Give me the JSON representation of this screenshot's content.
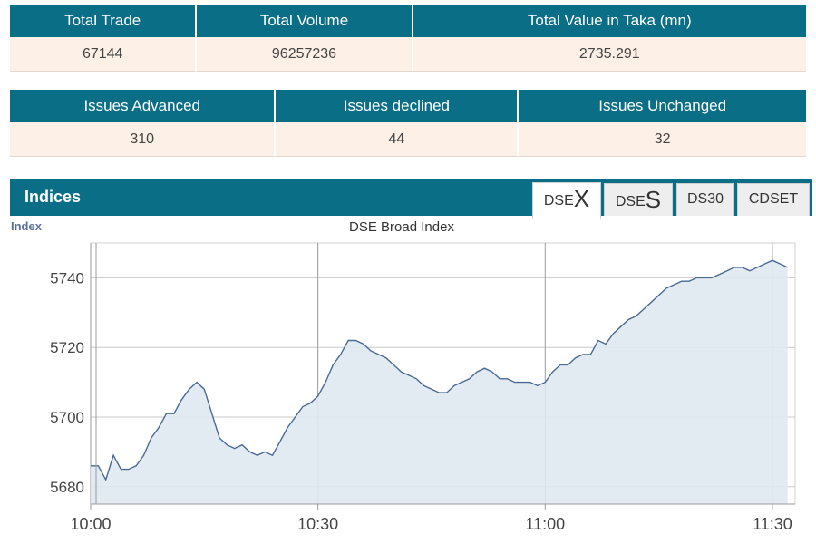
{
  "market_summary": {
    "headers": [
      "Total Trade",
      "Total Volume",
      "Total Value in Taka (mn)"
    ],
    "values": [
      "67144",
      "96257236",
      "2735.291"
    ]
  },
  "issues_summary": {
    "headers": [
      "Issues Advanced",
      "Issues declined",
      "Issues Unchanged"
    ],
    "values": [
      "310",
      "44",
      "32"
    ]
  },
  "indices": {
    "title": "Indices",
    "tabs": [
      {
        "prefix": "DSE",
        "suffix": "X",
        "active": true
      },
      {
        "prefix": "DSE",
        "suffix": "S",
        "active": false
      },
      {
        "label": "DS30",
        "active": false
      },
      {
        "label": "CDSET",
        "active": false
      }
    ]
  },
  "chart_data": {
    "type": "area",
    "title": "DSE Broad Index",
    "ylabel": "Index",
    "xlabel": "",
    "x_ticks": [
      "10:00",
      "10:30",
      "11:00",
      "11:30"
    ],
    "y_ticks": [
      5680,
      5700,
      5720,
      5740
    ],
    "xlim": [
      "10:00",
      "11:33"
    ],
    "ylim": [
      5675,
      5750
    ],
    "grid": true,
    "colors": {
      "line": "#4a6a94",
      "fill": "#dfe8f1",
      "grid": "#c8c8c8"
    },
    "series": [
      {
        "x": [
          "10:00",
          "10:01",
          "10:02",
          "10:03",
          "10:04",
          "10:05",
          "10:06",
          "10:07",
          "10:08",
          "10:09",
          "10:10",
          "10:11",
          "10:12",
          "10:13",
          "10:14",
          "10:15",
          "10:16",
          "10:17",
          "10:18",
          "10:19",
          "10:20",
          "10:21",
          "10:22",
          "10:23",
          "10:24",
          "10:25",
          "10:26",
          "10:27",
          "10:28",
          "10:29",
          "10:30",
          "10:31",
          "10:32",
          "10:33",
          "10:34",
          "10:35",
          "10:36",
          "10:37",
          "10:38",
          "10:39",
          "10:40",
          "10:41",
          "10:42",
          "10:43",
          "10:44",
          "10:45",
          "10:46",
          "10:47",
          "10:48",
          "10:49",
          "10:50",
          "10:51",
          "10:52",
          "10:53",
          "10:54",
          "10:55",
          "10:56",
          "10:57",
          "10:58",
          "10:59",
          "11:00",
          "11:01",
          "11:02",
          "11:03",
          "11:04",
          "11:05",
          "11:06",
          "11:07",
          "11:08",
          "11:09",
          "11:10",
          "11:11",
          "11:12",
          "11:13",
          "11:14",
          "11:15",
          "11:16",
          "11:17",
          "11:18",
          "11:19",
          "11:20",
          "11:21",
          "11:22",
          "11:23",
          "11:24",
          "11:25",
          "11:26",
          "11:27",
          "11:28",
          "11:29",
          "11:30",
          "11:31",
          "11:32"
        ],
        "values": [
          5686,
          5686,
          5682,
          5689,
          5685,
          5685,
          5686,
          5689,
          5694,
          5697,
          5701,
          5701,
          5705,
          5708,
          5710,
          5708,
          5701,
          5694,
          5692,
          5691,
          5692,
          5690,
          5689,
          5690,
          5689,
          5693,
          5697,
          5700,
          5703,
          5704,
          5706,
          5710,
          5715,
          5718,
          5722,
          5722,
          5721,
          5719,
          5718,
          5717,
          5715,
          5713,
          5712,
          5711,
          5709,
          5708,
          5707,
          5707,
          5709,
          5710,
          5711,
          5713,
          5714,
          5713,
          5711,
          5711,
          5710,
          5710,
          5710,
          5709,
          5710,
          5713,
          5715,
          5715,
          5717,
          5718,
          5718,
          5722,
          5721,
          5724,
          5726,
          5728,
          5729,
          5731,
          5733,
          5735,
          5737,
          5738,
          5739,
          5739,
          5740,
          5740,
          5740,
          5741,
          5742,
          5743,
          5743,
          5742,
          5743,
          5744,
          5745,
          5744,
          5743
        ]
      }
    ]
  }
}
